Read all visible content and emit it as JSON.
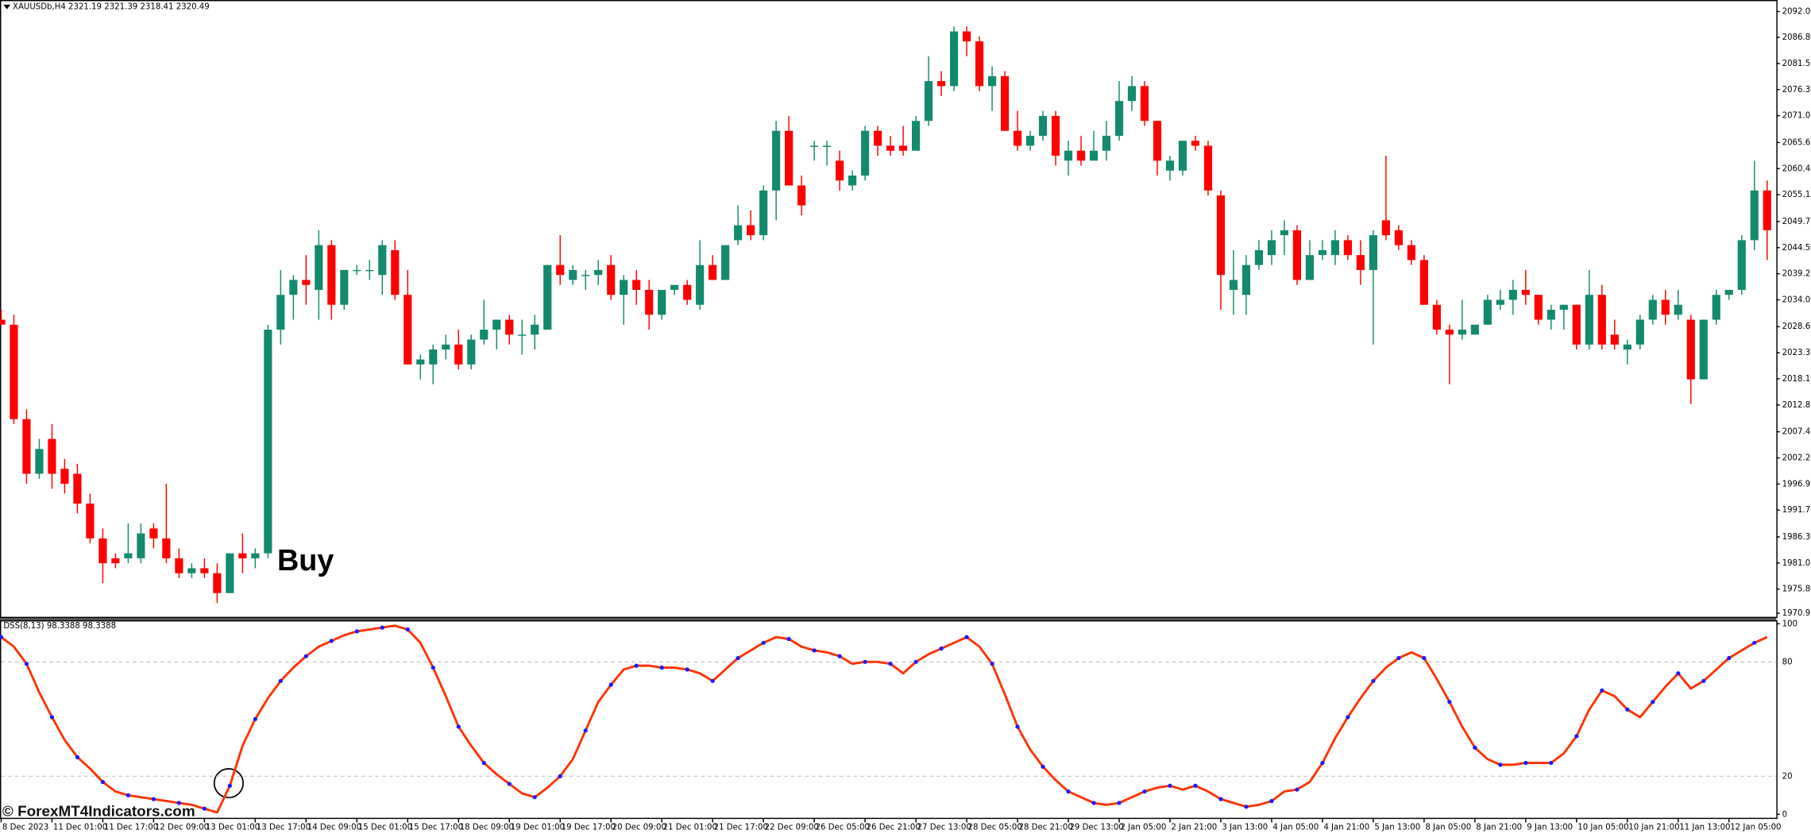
{
  "chart_data": [
    {
      "type": "candlestick",
      "title": "XAUUSDb,H4  2321.19 2321.39 2318.41 2320.49",
      "annotation": "Buy",
      "up_color": "#138a6e",
      "down_color": "#ff0000",
      "categories": [
        "8 Dec 2023",
        null,
        null,
        null,
        "11 Dec 01:00",
        null,
        null,
        null,
        "11 Dec 17:00",
        null,
        null,
        null,
        "12 Dec 09:00",
        null,
        null,
        null,
        "13 Dec 01:00",
        null,
        null,
        null,
        "13 Dec 17:00",
        null,
        null,
        null,
        "14 Dec 09:00",
        null,
        null,
        null,
        "15 Dec 01:00",
        null,
        null,
        null,
        "15 Dec 17:00",
        null,
        null,
        null,
        "18 Dec 09:00",
        null,
        null,
        null,
        "19 Dec 01:00",
        null,
        null,
        null,
        "19 Dec 17:00",
        null,
        null,
        null,
        "20 Dec 09:00",
        null,
        null,
        null,
        "21 Dec 01:00",
        null,
        null,
        null,
        "21 Dec 17:00",
        null,
        null,
        null,
        "22 Dec 09:00",
        null,
        null,
        null,
        "26 Dec 05:00",
        null,
        null,
        null,
        "26 Dec 21:00",
        null,
        null,
        null,
        "27 Dec 13:00",
        null,
        null,
        null,
        "28 Dec 05:00",
        null,
        null,
        null,
        "28 Dec 21:00",
        null,
        null,
        null,
        "29 Dec 13:00",
        null,
        null,
        null,
        "2 Jan 05:00",
        null,
        null,
        null,
        "2 Jan 21:00",
        null,
        null,
        null,
        "3 Jan 13:00",
        null,
        null,
        null,
        "4 Jan 05:00",
        null,
        null,
        null,
        "4 Jan 21:00",
        null,
        null,
        null,
        "5 Jan 13:00",
        null,
        null,
        null,
        "8 Jan 05:00",
        null,
        null,
        null,
        "8 Jan 21:00",
        null,
        null,
        null,
        "9 Jan 13:00",
        null,
        null,
        null,
        "10 Jan 05:00",
        null,
        null,
        null,
        "10 Jan 21:00",
        null,
        null,
        null,
        "11 Jan 13:00",
        null,
        null,
        null,
        "12 Jan 05:00",
        null,
        null,
        null
      ],
      "open": [
        2030,
        2029,
        2010,
        1999,
        2006,
        2000,
        1999,
        1993,
        1986,
        1982,
        1982,
        1982,
        1988,
        1986,
        1982,
        1979,
        1980,
        1979,
        1975,
        1983,
        1982,
        1983,
        2028,
        2035,
        2038,
        2036,
        2045,
        2033,
        2040,
        2040,
        2039,
        2044,
        2035,
        2021,
        2021,
        2024,
        2025,
        2021,
        2026,
        2028,
        2030,
        2027,
        2027,
        2028,
        2041,
        2038,
        2039,
        2039,
        2041,
        2035,
        2038,
        2036,
        2031,
        2036,
        2037,
        2033,
        2041,
        2038,
        2046,
        2049,
        2047,
        2056,
        2068,
        2057,
        2065,
        2065,
        2062,
        2057,
        2059,
        2068,
        2065,
        2065,
        2064,
        2070,
        2078,
        2077,
        2088,
        2086,
        2077,
        2079,
        2068,
        2065,
        2067,
        2071,
        2062,
        2064,
        2062,
        2064,
        2067,
        2074,
        2077,
        2070,
        2060,
        2060,
        2066,
        2065,
        2055,
        2036,
        2035,
        2041,
        2043,
        2047,
        2048,
        2038,
        2043,
        2043,
        2046,
        2043,
        2040,
        2050,
        2048,
        2045,
        2042,
        2033,
        2028,
        2027,
        2027,
        2029,
        2033,
        2034,
        2036,
        2035,
        2030,
        2032,
        2033,
        2025,
        2035,
        2027,
        2024,
        2025,
        2030,
        2034,
        2031,
        2030,
        2018,
        2030,
        2035,
        2036,
        2046,
        2056
      ],
      "high": [
        2032,
        2031,
        2012,
        2006,
        2009,
        2002,
        2001,
        1995,
        1988,
        1983,
        1989,
        1989,
        1989,
        1997,
        1984,
        1981,
        1982,
        1981,
        1983,
        1987,
        1984,
        2029,
        2040,
        2039,
        2043,
        2048,
        2046,
        2040,
        2041,
        2042,
        2046,
        2046,
        2040,
        2023,
        2025,
        2027,
        2028,
        2027,
        2034,
        2030,
        2031,
        2030,
        2031,
        2041,
        2047,
        2041,
        2040,
        2042,
        2043,
        2039,
        2040,
        2038,
        2036,
        2037,
        2038,
        2046,
        2043,
        2045,
        2053,
        2052,
        2057,
        2070,
        2071,
        2059,
        2066,
        2066,
        2064,
        2060,
        2069,
        2069,
        2067,
        2069,
        2071,
        2083,
        2080,
        2089,
        2089,
        2087,
        2081,
        2080,
        2072,
        2068,
        2072,
        2072,
        2066,
        2067,
        2068,
        2070,
        2078,
        2079,
        2078,
        2070,
        2063,
        2066,
        2067,
        2066,
        2056,
        2044,
        2043,
        2046,
        2048,
        2050,
        2049,
        2046,
        2046,
        2048,
        2047,
        2046,
        2048,
        2063,
        2049,
        2046,
        2043,
        2034,
        2029,
        2034,
        2029,
        2035,
        2036,
        2038,
        2040,
        2035,
        2033,
        2033,
        2033,
        2040,
        2037,
        2030,
        2026,
        2031,
        2035,
        2036,
        2036,
        2031,
        2030,
        2036,
        2036,
        2047,
        2062,
        2058
      ],
      "low": [
        2029,
        2009,
        1997,
        1998,
        1996,
        1995,
        1991,
        1985,
        1977,
        1980,
        1981,
        1981,
        1984,
        1981,
        1978,
        1978,
        1978,
        1973,
        1975,
        1979,
        1980,
        1982,
        2025,
        2030,
        2033,
        2030,
        2030,
        2032,
        2039,
        2038,
        2035,
        2034,
        2021,
        2018,
        2017,
        2022,
        2020,
        2020,
        2025,
        2024,
        2025,
        2023,
        2024,
        2028,
        2037,
        2037,
        2036,
        2037,
        2034,
        2029,
        2033,
        2028,
        2030,
        2035,
        2033,
        2032,
        2038,
        2038,
        2045,
        2046,
        2046,
        2050,
        2057,
        2051,
        2062,
        2061,
        2056,
        2056,
        2058,
        2063,
        2063,
        2063,
        2064,
        2069,
        2075,
        2076,
        2083,
        2076,
        2072,
        2068,
        2064,
        2064,
        2066,
        2061,
        2059,
        2061,
        2062,
        2062,
        2066,
        2072,
        2069,
        2059,
        2058,
        2059,
        2064,
        2055,
        2032,
        2031,
        2031,
        2040,
        2041,
        2043,
        2037,
        2038,
        2042,
        2041,
        2042,
        2037,
        2025,
        2046,
        2044,
        2041,
        2033,
        2027,
        2017,
        2026,
        2027,
        2029,
        2032,
        2031,
        2033,
        2029,
        2028,
        2028,
        2024,
        2024,
        2024,
        2024,
        2021,
        2024,
        2029,
        2029,
        2030,
        2013,
        2018,
        2029,
        2034,
        2035,
        2044,
        2042
      ],
      "close": [
        2029,
        2010,
        1999,
        2004,
        1999,
        1997,
        1993,
        1986,
        1981,
        1981,
        1983,
        1987,
        1986,
        1982,
        1979,
        1980,
        1979,
        1975,
        1983,
        1982,
        1983,
        2028,
        2035,
        2038,
        2037,
        2045,
        2033,
        2040,
        2040,
        2040,
        2045,
        2035,
        2021,
        2022,
        2024,
        2025,
        2021,
        2026,
        2028,
        2030,
        2027,
        2027,
        2029,
        2041,
        2039,
        2040,
        2039,
        2040,
        2035,
        2038,
        2036,
        2031,
        2036,
        2037,
        2034,
        2041,
        2038,
        2045,
        2049,
        2047,
        2056,
        2068,
        2057,
        2053,
        2065,
        2065,
        2058,
        2059,
        2068,
        2065,
        2064,
        2064,
        2070,
        2078,
        2077,
        2088,
        2086,
        2077,
        2079,
        2068,
        2065,
        2067,
        2071,
        2063,
        2064,
        2062,
        2064,
        2067,
        2074,
        2077,
        2070,
        2062,
        2062,
        2066,
        2065,
        2056,
        2039,
        2038,
        2041,
        2044,
        2046,
        2048,
        2038,
        2043,
        2044,
        2046,
        2043,
        2040,
        2047,
        2047,
        2045,
        2042,
        2033,
        2028,
        2027,
        2028,
        2029,
        2034,
        2034,
        2036,
        2035,
        2030,
        2032,
        2033,
        2025,
        2035,
        2025,
        2025,
        2025,
        2030,
        2034,
        2031,
        2033,
        2018,
        2030,
        2035,
        2036,
        2046,
        2056,
        2048
      ],
      "ylim": [
        1970.22,
        2094.32
      ],
      "yticks": [
        {
          "value": 2092,
          "label": "2092.00"
        },
        {
          "value": 2086.8,
          "label": "2086.80"
        },
        {
          "value": 2081.55,
          "label": "2081.55"
        },
        {
          "value": 2076.3,
          "label": "2076.30"
        },
        {
          "value": 2071.05,
          "label": "2071.05"
        },
        {
          "value": 2065.65,
          "label": "2065.65"
        },
        {
          "value": 2060.4,
          "label": "2060.40"
        },
        {
          "value": 2055.15,
          "label": "2055.15"
        },
        {
          "value": 2049.75,
          "label": "2049.75"
        },
        {
          "value": 2044.5,
          "label": "2044.50"
        },
        {
          "value": 2039.25,
          "label": "2039.25"
        },
        {
          "value": 2034,
          "label": "2034.00"
        },
        {
          "value": 2028.6,
          "label": "2028.60"
        },
        {
          "value": 2023.35,
          "label": "2023.35"
        },
        {
          "value": 2018.1,
          "label": "2018.10"
        },
        {
          "value": 2012.85,
          "label": "2012.85"
        },
        {
          "value": 2007.45,
          "label": "2007.45"
        },
        {
          "value": 2002.2,
          "label": "2002.20"
        },
        {
          "value": 1996.95,
          "label": "1996.95"
        },
        {
          "value": 1991.7,
          "label": "1991.70"
        },
        {
          "value": 1986.3,
          "label": "1986.30"
        },
        {
          "value": 1981.05,
          "label": "1981.05"
        },
        {
          "value": 1975.8,
          "label": "1975.80"
        },
        {
          "value": 1970.95,
          "label": "1970.95"
        }
      ]
    },
    {
      "type": "line",
      "title": "DSS(8,13) 98.3388 98.3388",
      "color": "#ff3300",
      "marker_color": "#1a1aff",
      "values": [
        93,
        88,
        79,
        64,
        51,
        39,
        30,
        24,
        17,
        12,
        10,
        9,
        8,
        7,
        6,
        5,
        3,
        1,
        15,
        36,
        50,
        61,
        70,
        77,
        83,
        88,
        91,
        94,
        96,
        97,
        98,
        99,
        97,
        90,
        77,
        62,
        46,
        36,
        27,
        21,
        16,
        11,
        9,
        14,
        20,
        29,
        44,
        59,
        68,
        76,
        78,
        78,
        77,
        77,
        76,
        74,
        70,
        76,
        82,
        86,
        90,
        93,
        92,
        88,
        86,
        85,
        83,
        79,
        80,
        80,
        79,
        74,
        80,
        84,
        87,
        90,
        93,
        88,
        79,
        63,
        46,
        34,
        25,
        18,
        12,
        9,
        6,
        5,
        6,
        9,
        12,
        14,
        15,
        13,
        15,
        12,
        8,
        6,
        4,
        5,
        7,
        12,
        13,
        17,
        27,
        40,
        51,
        61,
        70,
        77,
        82,
        85,
        82,
        71,
        59,
        46,
        35,
        29,
        26,
        26,
        27,
        27,
        27,
        32,
        41,
        55,
        65,
        62,
        55,
        51,
        59,
        67,
        74,
        66,
        70,
        76,
        82,
        86,
        90,
        93
      ],
      "ylim": [
        0,
        100
      ],
      "yticks": [
        0,
        20,
        80,
        100
      ]
    }
  ],
  "watermark": "© ForexMT4Indicators.com"
}
